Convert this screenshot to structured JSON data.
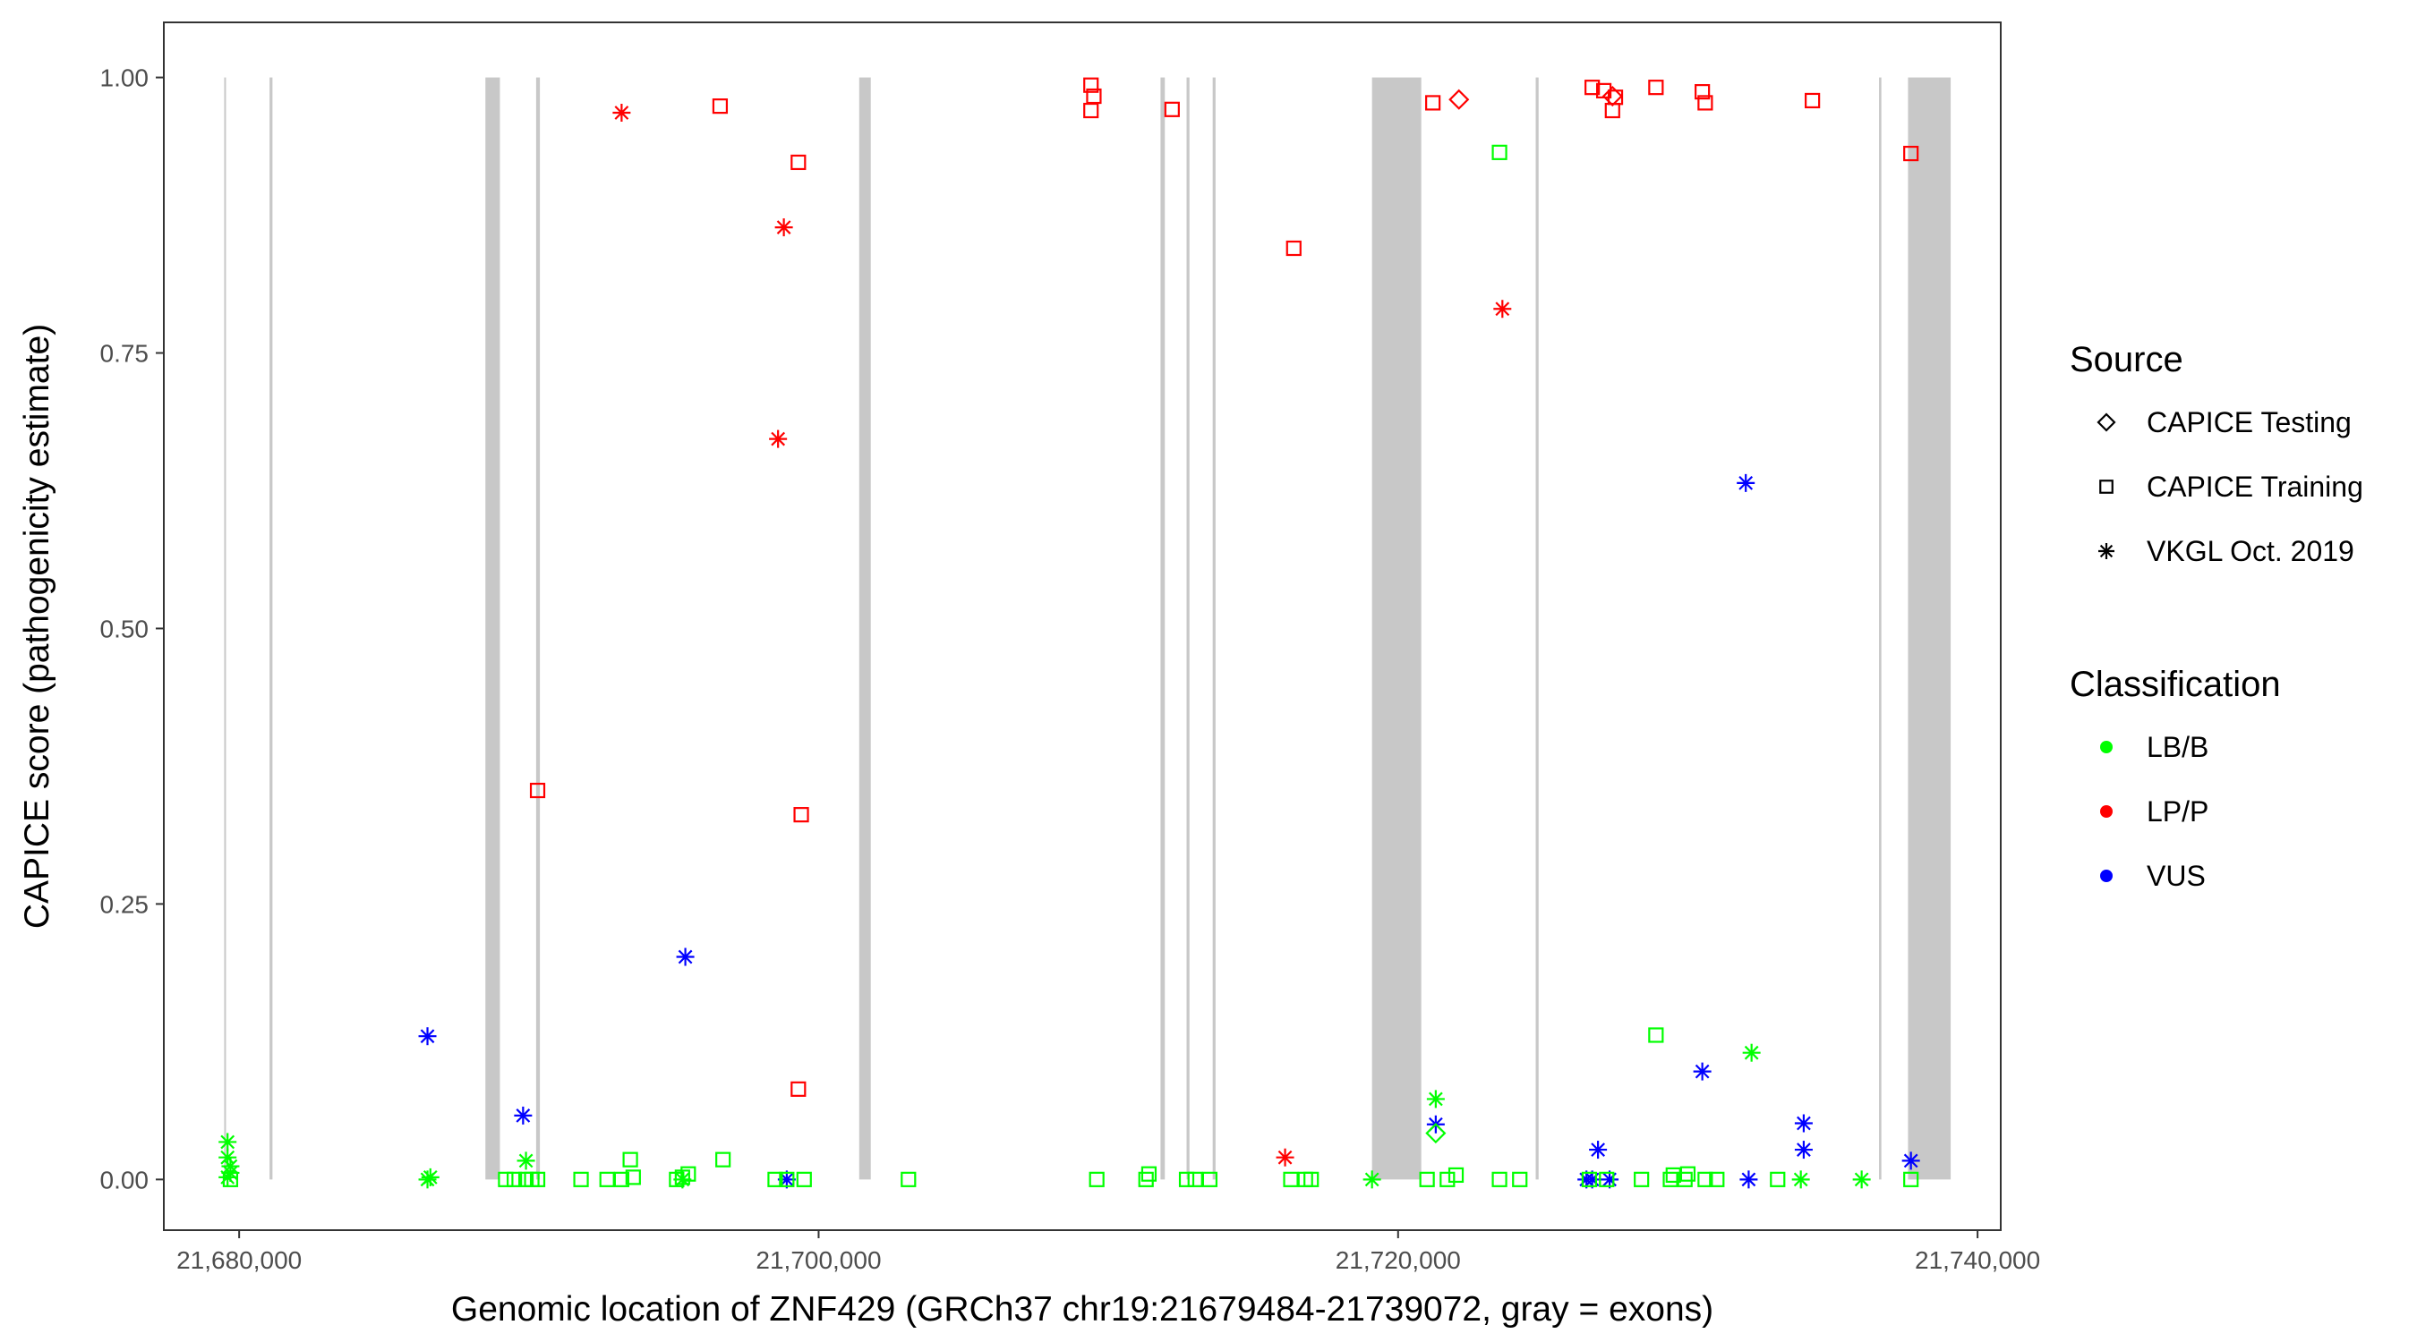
{
  "chart_data": {
    "type": "scatter",
    "title": "",
    "xlabel": "Genomic location of ZNF429 (GRCh37 chr19:21679484-21739072, gray = exons)",
    "ylabel": "CAPICE score (pathogenicity estimate)",
    "xlim": [
      21677400,
      21740800
    ],
    "ylim": [
      -0.046,
      1.05
    ],
    "x_ticks": [
      21680000,
      21700000,
      21720000,
      21740000
    ],
    "x_tick_labels": [
      "21,680,000",
      "21,700,000",
      "21,720,000",
      "21,740,000"
    ],
    "y_ticks": [
      0,
      0.25,
      0.5,
      0.75,
      1.0
    ],
    "y_tick_labels": [
      "0.00",
      "0.25",
      "0.50",
      "0.75",
      "1.00"
    ],
    "grid": false,
    "exons": [
      [
        21679484,
        21679530
      ],
      [
        21681050,
        21681150
      ],
      [
        21688500,
        21689000
      ],
      [
        21690250,
        21690380
      ],
      [
        21701400,
        21701800
      ],
      [
        21711800,
        21711950
      ],
      [
        21712700,
        21712800
      ],
      [
        21713600,
        21713700
      ],
      [
        21719100,
        21720800
      ],
      [
        21724750,
        21724850
      ],
      [
        21736600,
        21736680
      ],
      [
        21737600,
        21739072
      ]
    ],
    "legend": {
      "position": "right",
      "source_title": "Source",
      "source_items": [
        {
          "label": "CAPICE Testing",
          "shape": "diamond"
        },
        {
          "label": "CAPICE Training",
          "shape": "square"
        },
        {
          "label": "VKGL Oct. 2019",
          "shape": "asterisk"
        }
      ],
      "class_title": "Classification",
      "class_items": [
        {
          "label": "LB/B",
          "color": "#00ff00"
        },
        {
          "label": "LP/P",
          "color": "#ff0000"
        },
        {
          "label": "VUS",
          "color": "#0000ff"
        }
      ]
    },
    "colors": {
      "LB/B": "#00ff00",
      "LP/P": "#ff0000",
      "VUS": "#0000ff",
      "exon": "#c8c8c8"
    },
    "series": [
      {
        "source": "CAPICE Training",
        "classification": "LP/P",
        "points": [
          [
            21696600,
            0.974
          ],
          [
            21699300,
            0.923
          ],
          [
            21690300,
            0.353
          ],
          [
            21699400,
            0.331
          ],
          [
            21699300,
            0.082
          ],
          [
            21709400,
            0.993
          ],
          [
            21709500,
            0.983
          ],
          [
            21709400,
            0.97
          ],
          [
            21712200,
            0.971
          ],
          [
            21716400,
            0.845
          ],
          [
            21721200,
            0.977
          ],
          [
            21726700,
            0.991
          ],
          [
            21727100,
            0.988
          ],
          [
            21727500,
            0.982
          ],
          [
            21727400,
            0.97
          ],
          [
            21728900,
            0.991
          ],
          [
            21730500,
            0.987
          ],
          [
            21730600,
            0.977
          ],
          [
            21734300,
            0.979
          ],
          [
            21737700,
            0.931
          ]
        ]
      },
      {
        "source": "CAPICE Testing",
        "classification": "LP/P",
        "points": [
          [
            21722100,
            0.98
          ],
          [
            21727400,
            0.983
          ]
        ]
      },
      {
        "source": "VKGL Oct. 2019",
        "classification": "LP/P",
        "points": [
          [
            21693200,
            0.968
          ],
          [
            21698800,
            0.864
          ],
          [
            21698600,
            0.672
          ],
          [
            21723600,
            0.79
          ],
          [
            21716100,
            0.02
          ]
        ]
      },
      {
        "source": "VKGL Oct. 2019",
        "classification": "VUS",
        "points": [
          [
            21686500,
            0.13
          ],
          [
            21689800,
            0.058
          ],
          [
            21695400,
            0.202
          ],
          [
            21698900,
            0.0
          ],
          [
            21721300,
            0.05
          ],
          [
            21726500,
            0.0
          ],
          [
            21726700,
            0.0
          ],
          [
            21726900,
            0.027
          ],
          [
            21727300,
            0.0
          ],
          [
            21730500,
            0.098
          ],
          [
            21732000,
            0.632
          ],
          [
            21732100,
            0.0
          ],
          [
            21734000,
            0.051
          ],
          [
            21734000,
            0.027
          ],
          [
            21737700,
            0.017
          ]
        ]
      },
      {
        "source": "CAPICE Testing",
        "classification": "LB/B",
        "points": [
          [
            21721300,
            0.042
          ]
        ]
      },
      {
        "source": "VKGL Oct. 2019",
        "classification": "LB/B",
        "points": [
          [
            21679600,
            0.034
          ],
          [
            21679600,
            0.02
          ],
          [
            21679700,
            0.012
          ],
          [
            21679700,
            0.006
          ],
          [
            21679600,
            0.002
          ],
          [
            21686500,
            0.0
          ],
          [
            21686600,
            0.002
          ],
          [
            21689900,
            0.017
          ],
          [
            21695300,
            0.0
          ],
          [
            21719100,
            0.0
          ],
          [
            21721300,
            0.073
          ],
          [
            21732200,
            0.115
          ],
          [
            21733900,
            0.0
          ],
          [
            21736000,
            0.0
          ]
        ]
      },
      {
        "source": "CAPICE Training",
        "classification": "LB/B",
        "points": [
          [
            21679700,
            0.0
          ],
          [
            21689200,
            0.0
          ],
          [
            21689500,
            0.0
          ],
          [
            21689900,
            0.0
          ],
          [
            21690100,
            0.0
          ],
          [
            21690300,
            0.0
          ],
          [
            21691800,
            0.0
          ],
          [
            21692700,
            0.0
          ],
          [
            21693200,
            0.0
          ],
          [
            21693500,
            0.018
          ],
          [
            21693600,
            0.002
          ],
          [
            21695100,
            0.0
          ],
          [
            21695300,
            0.002
          ],
          [
            21695500,
            0.005
          ],
          [
            21696700,
            0.018
          ],
          [
            21698500,
            0.0
          ],
          [
            21698900,
            0.0
          ],
          [
            21699500,
            0.0
          ],
          [
            21703100,
            0.0
          ],
          [
            21709600,
            0.0
          ],
          [
            21711300,
            0.0
          ],
          [
            21711400,
            0.005
          ],
          [
            21712700,
            0.0
          ],
          [
            21713000,
            0.0
          ],
          [
            21713500,
            0.0
          ],
          [
            21716300,
            0.0
          ],
          [
            21716800,
            0.0
          ],
          [
            21717000,
            0.0
          ],
          [
            21721000,
            0.0
          ],
          [
            21721700,
            0.0
          ],
          [
            21722000,
            0.004
          ],
          [
            21723500,
            0.932
          ],
          [
            21723500,
            0.0
          ],
          [
            21724200,
            0.0
          ],
          [
            21726600,
            0.0
          ],
          [
            21727200,
            0.0
          ],
          [
            21728400,
            0.0
          ],
          [
            21728900,
            0.131
          ],
          [
            21729400,
            0.0
          ],
          [
            21729500,
            0.004
          ],
          [
            21729900,
            0.0
          ],
          [
            21730000,
            0.005
          ],
          [
            21730600,
            0.0
          ],
          [
            21731000,
            0.0
          ],
          [
            21733100,
            0.0
          ],
          [
            21737700,
            0.0
          ]
        ]
      }
    ]
  }
}
